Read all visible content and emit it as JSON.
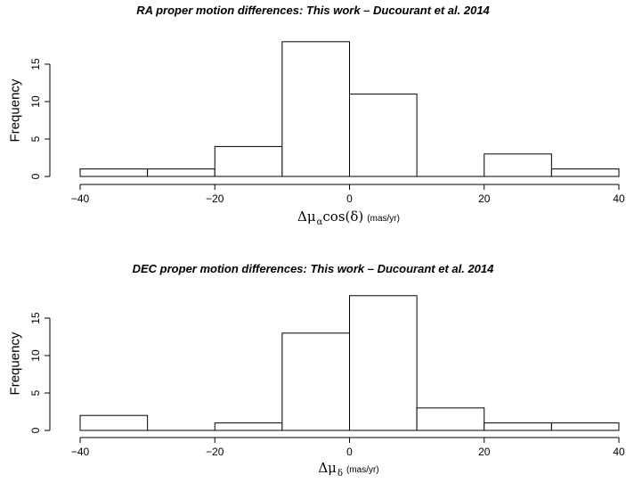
{
  "chart_data": [
    {
      "type": "bar",
      "title": "RA proper motion differences: This work – Ducourant et al. 2014",
      "ylabel": "Frequency",
      "xlabel": {
        "symbol": "Δμ",
        "subscript": "α",
        "suffix": "cos(δ)",
        "unit": "(mas/yr)"
      },
      "bins": [
        [
          -40,
          -30
        ],
        [
          -30,
          -20
        ],
        [
          -20,
          -10
        ],
        [
          -10,
          0
        ],
        [
          0,
          10
        ],
        [
          10,
          20
        ],
        [
          20,
          30
        ],
        [
          30,
          40
        ]
      ],
      "values": [
        1,
        1,
        4,
        18,
        11,
        0,
        3,
        1
      ],
      "xlim": [
        -40,
        40
      ],
      "ylim": [
        0,
        18
      ],
      "xticks": [
        -40,
        -20,
        0,
        20,
        40
      ],
      "xtick_labels": [
        "−40",
        "−20",
        "0",
        "20",
        "40"
      ],
      "yticks": [
        0,
        5,
        10,
        15
      ],
      "ytick_labels": [
        "0",
        "5",
        "10",
        "15"
      ],
      "grid": false
    },
    {
      "type": "bar",
      "title": "DEC proper motion differences: This work – Ducourant et al. 2014",
      "ylabel": "Frequency",
      "xlabel": {
        "symbol": "Δμ",
        "subscript": "δ",
        "suffix": "",
        "unit": "(mas/yr)"
      },
      "bins": [
        [
          -40,
          -30
        ],
        [
          -30,
          -20
        ],
        [
          -20,
          -10
        ],
        [
          -10,
          0
        ],
        [
          0,
          10
        ],
        [
          10,
          20
        ],
        [
          20,
          30
        ],
        [
          30,
          40
        ]
      ],
      "values": [
        2,
        0,
        1,
        13,
        18,
        3,
        1,
        1
      ],
      "xlim": [
        -40,
        40
      ],
      "ylim": [
        0,
        18
      ],
      "xticks": [
        -40,
        -20,
        0,
        20,
        40
      ],
      "xtick_labels": [
        "−40",
        "−20",
        "0",
        "20",
        "40"
      ],
      "yticks": [
        0,
        5,
        10,
        15
      ],
      "ytick_labels": [
        "0",
        "5",
        "10",
        "15"
      ],
      "grid": false
    }
  ]
}
